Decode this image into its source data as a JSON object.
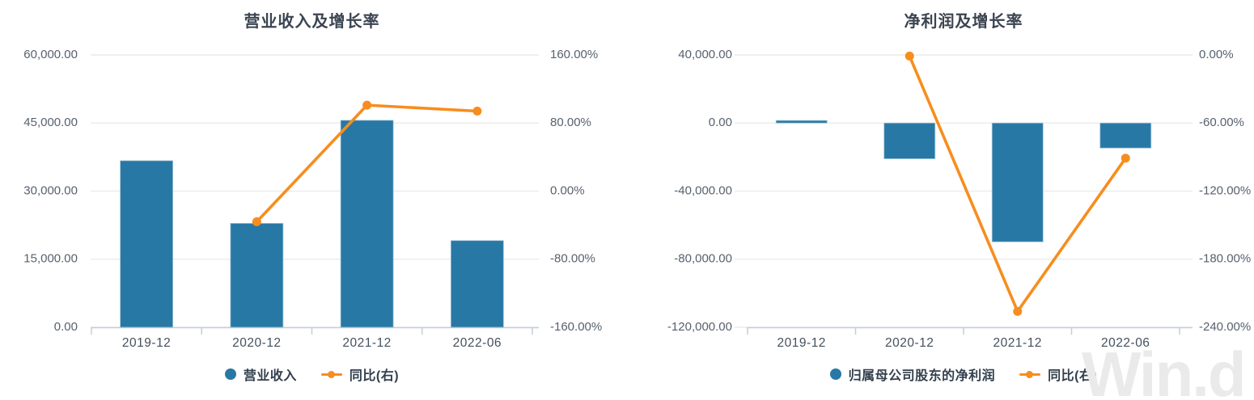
{
  "watermark": "Win.d",
  "colors": {
    "bar_blue": "#2878A6",
    "line_orange": "#F78D1E",
    "gridline": "#ECECEC",
    "axis_line": "#C3CEDB",
    "y_label": "#57616E",
    "x_label": "#44505E",
    "title": "#3B4451",
    "legend_text": "#333F4D",
    "watermark_gray": "#EAEAEA"
  },
  "chart_data": [
    {
      "type": "bar+line",
      "title": "营业收入及增长率",
      "categories": [
        "2019-12",
        "2020-12",
        "2021-12",
        "2022-06"
      ],
      "series": [
        {
          "name": "营业收入",
          "type": "bar",
          "axis": "left",
          "values": [
            36700,
            22900,
            45600,
            19100
          ]
        },
        {
          "name": "同比(右)",
          "type": "line",
          "axis": "right",
          "values": [
            null,
            -36,
            101,
            94
          ]
        }
      ],
      "left_axis": {
        "min": 0,
        "max": 60000,
        "ticks": [
          "60,000.00",
          "45,000.00",
          "30,000.00",
          "15,000.00",
          "0.00"
        ]
      },
      "right_axis": {
        "min": -160,
        "max": 160,
        "ticks": [
          "160.00%",
          "80.00%",
          "0.00%",
          "-80.00%",
          "-160.00%"
        ]
      },
      "legend": [
        {
          "label": "营业收入",
          "marker": "circle"
        },
        {
          "label": "同比(右)",
          "marker": "line-dot"
        }
      ],
      "grid": true,
      "legend_position": "bottom"
    },
    {
      "type": "bar+line",
      "title": "净利润及增长率",
      "categories": [
        "2019-12",
        "2020-12",
        "2021-12",
        "2022-06"
      ],
      "series": [
        {
          "name": "归属母公司股东的净利润",
          "type": "bar",
          "axis": "left",
          "values": [
            1500,
            -21000,
            -69800,
            -14700
          ]
        },
        {
          "name": "同比(右)",
          "type": "line",
          "axis": "right",
          "values": [
            null,
            -1,
            -226,
            -91
          ]
        }
      ],
      "left_axis": {
        "min": -120000,
        "max": 40000,
        "ticks": [
          "40,000.00",
          "0.00",
          "-40,000.00",
          "-80,000.00",
          "-120,000.00"
        ]
      },
      "right_axis": {
        "min": -240,
        "max": 0,
        "ticks": [
          "0.00%",
          "-60.00%",
          "-120.00%",
          "-180.00%",
          "-240.00%"
        ]
      },
      "legend": [
        {
          "label": "归属母公司股东的净利润",
          "marker": "circle"
        },
        {
          "label": "同比(右)",
          "marker": "line-dot"
        }
      ],
      "grid": true,
      "legend_position": "bottom"
    }
  ]
}
